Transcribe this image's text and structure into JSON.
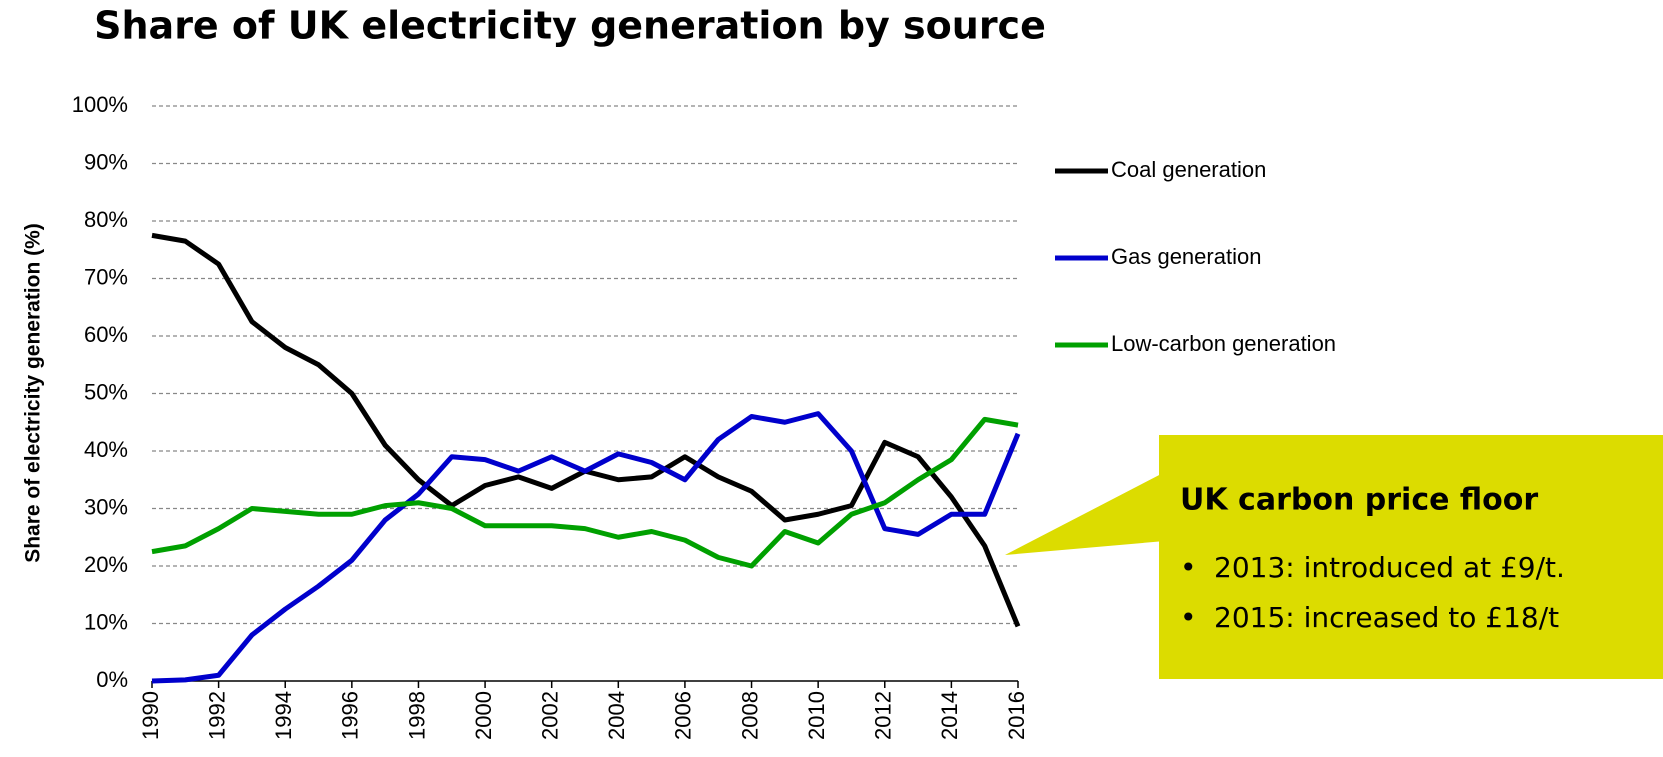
{
  "chart_data": {
    "type": "line",
    "title": "Share of UK electricity generation by source",
    "y_label": "Share of electricity generation (%)",
    "x": [
      1990,
      1991,
      1992,
      1993,
      1994,
      1995,
      1996,
      1997,
      1998,
      1999,
      2000,
      2001,
      2002,
      2003,
      2004,
      2005,
      2006,
      2007,
      2008,
      2009,
      2010,
      2011,
      2012,
      2013,
      2014,
      2015,
      2016
    ],
    "series": [
      {
        "name": "Coal generation",
        "color": "#000000",
        "values": [
          77.5,
          76.5,
          72.5,
          62.5,
          58,
          55,
          50,
          41,
          35,
          30.5,
          34,
          35.5,
          33.5,
          36.5,
          35,
          35.5,
          39,
          35.5,
          33,
          28,
          29,
          30.5,
          41.5,
          39,
          32,
          23.5,
          9.5
        ]
      },
      {
        "name": "Gas generation",
        "color": "#0000cc",
        "values": [
          0,
          0.2,
          1,
          8,
          12.5,
          16.5,
          21,
          28,
          32.5,
          39,
          38.5,
          36.5,
          39,
          36.5,
          39.5,
          38,
          35,
          42,
          46,
          45,
          46.5,
          40,
          26.5,
          25.5,
          29,
          29,
          43
        ]
      },
      {
        "name": "Low-carbon generation",
        "color": "#00a000",
        "values": [
          22.5,
          23.5,
          26.5,
          30,
          29.5,
          29,
          29,
          30.5,
          31,
          30,
          27,
          27,
          27,
          26.5,
          25,
          26,
          24.5,
          21.5,
          20,
          26,
          24,
          29,
          31,
          35,
          38.5,
          45.5,
          44.5
        ]
      }
    ],
    "xlim": [
      1990,
      2016
    ],
    "xticks": [
      1990,
      1992,
      1994,
      1996,
      1998,
      2000,
      2002,
      2004,
      2006,
      2008,
      2010,
      2012,
      2014,
      2016
    ],
    "ylim": [
      0,
      100
    ],
    "yticks": [
      {
        "value": 0,
        "label": "0%"
      },
      {
        "value": 10,
        "label": "10%"
      },
      {
        "value": 20,
        "label": "20%"
      },
      {
        "value": 30,
        "label": "30%"
      },
      {
        "value": 40,
        "label": "40%"
      },
      {
        "value": 50,
        "label": "50%"
      },
      {
        "value": 60,
        "label": "60%"
      },
      {
        "value": 70,
        "label": "70%"
      },
      {
        "value": 80,
        "label": "80%"
      },
      {
        "value": 90,
        "label": "90%"
      },
      {
        "value": 100,
        "label": "100%"
      }
    ],
    "grid": true,
    "legend": "right",
    "annotation": {
      "title": "UK carbon price floor",
      "color": "#dcdc00",
      "bullets": [
        "2013: introduced at £9/t.",
        "2015: increased to £18/t"
      ]
    }
  }
}
